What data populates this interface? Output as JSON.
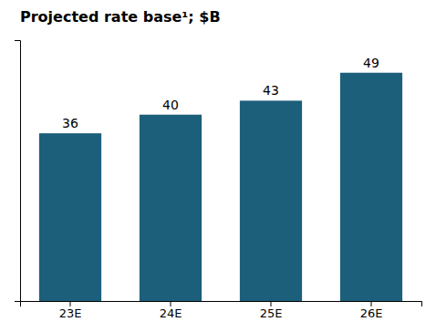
{
  "chart_data": {
    "type": "bar",
    "title": "Projected rate base¹; $B",
    "categories": [
      "23E",
      "24E",
      "25E",
      "26E"
    ],
    "values": [
      36,
      40,
      43,
      49
    ],
    "color": "#1c5f7a",
    "ylim": [
      0,
      56
    ],
    "grid": false,
    "data_labels": true,
    "tick_labels": "x"
  }
}
